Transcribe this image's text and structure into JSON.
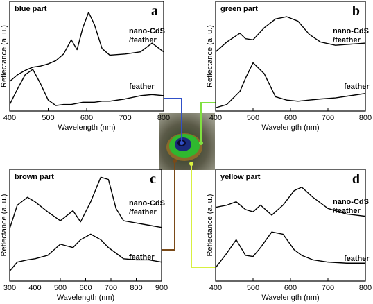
{
  "chart_data": [
    {
      "type": "line",
      "title": "blue part",
      "panel": "a",
      "x_label": "Wavelength (nm)",
      "y_label": "Reflectance (a. u.)",
      "x": [
        400,
        420,
        440,
        460,
        480,
        500,
        520,
        540,
        560,
        575,
        590,
        605,
        620,
        640,
        660,
        700,
        740,
        770,
        800
      ],
      "xlim": [
        400,
        800
      ],
      "xticks": [
        400,
        500,
        600,
        700,
        800
      ],
      "ylim": [
        0,
        1
      ],
      "series": [
        {
          "name": "nano-CdS\n/feather",
          "color": "#000000",
          "values": [
            0.27,
            0.33,
            0.37,
            0.4,
            0.41,
            0.43,
            0.46,
            0.52,
            0.65,
            0.56,
            0.76,
            0.9,
            0.79,
            0.57,
            0.51,
            0.52,
            0.54,
            0.62,
            0.54
          ]
        },
        {
          "name": "feather",
          "color": "#000000",
          "values": [
            0.06,
            0.2,
            0.33,
            0.38,
            0.25,
            0.1,
            0.05,
            0.06,
            0.06,
            0.07,
            0.08,
            0.08,
            0.08,
            0.09,
            0.09,
            0.11,
            0.14,
            0.15,
            0.14
          ]
        }
      ]
    },
    {
      "type": "line",
      "title": "green part",
      "panel": "b",
      "x_label": "Wavelength (nm)",
      "y_label": "Reflectance (a. u.)",
      "x": [
        400,
        430,
        465,
        480,
        500,
        530,
        560,
        590,
        620,
        650,
        680,
        720,
        760,
        800
      ],
      "xlim": [
        400,
        800
      ],
      "xticks": [
        400,
        500,
        600,
        700,
        800
      ],
      "ylim": [
        0,
        1
      ],
      "series": [
        {
          "name": "nano-CdS\n/feather",
          "color": "#000000",
          "values": [
            0.54,
            0.63,
            0.71,
            0.66,
            0.65,
            0.76,
            0.84,
            0.86,
            0.82,
            0.7,
            0.63,
            0.6,
            0.61,
            0.62
          ]
        },
        {
          "name": "feather",
          "color": "#000000",
          "values": [
            0.03,
            0.06,
            0.18,
            0.3,
            0.44,
            0.34,
            0.13,
            0.1,
            0.09,
            0.1,
            0.11,
            0.12,
            0.14,
            0.16
          ]
        }
      ]
    },
    {
      "type": "line",
      "title": "brown part",
      "panel": "c",
      "x_label": "Wavelength (nm)",
      "y_label": "Reflectance (a. u.)",
      "x": [
        300,
        330,
        370,
        400,
        450,
        500,
        550,
        580,
        620,
        660,
        690,
        720,
        750,
        800,
        850,
        900
      ],
      "xlim": [
        300,
        900
      ],
      "xticks": [
        300,
        400,
        500,
        600,
        700,
        800,
        900
      ],
      "ylim": [
        0,
        1
      ],
      "series": [
        {
          "name": "nano-CdS\n/feather",
          "color": "#000000",
          "values": [
            0.47,
            0.68,
            0.75,
            0.71,
            0.62,
            0.54,
            0.63,
            0.53,
            0.71,
            0.93,
            0.91,
            0.65,
            0.54,
            0.52,
            0.5,
            0.48
          ]
        },
        {
          "name": "feather",
          "color": "#000000",
          "values": [
            0.09,
            0.17,
            0.19,
            0.2,
            0.23,
            0.33,
            0.3,
            0.37,
            0.42,
            0.37,
            0.3,
            0.25,
            0.2,
            0.19,
            0.19,
            0.17
          ]
        }
      ]
    },
    {
      "type": "line",
      "title": "yellow part",
      "panel": "d",
      "x_label": "Wavelength (nm)",
      "y_label": "Reflectance (a. u.)",
      "x": [
        400,
        430,
        455,
        480,
        500,
        520,
        550,
        580,
        610,
        630,
        660,
        700,
        750,
        800
      ],
      "xlim": [
        400,
        800
      ],
      "xticks": [
        400,
        500,
        600,
        700,
        800
      ],
      "ylim": [
        0,
        1
      ],
      "series": [
        {
          "name": "nano-CdS\n/feather",
          "color": "#000000",
          "values": [
            0.66,
            0.68,
            0.71,
            0.64,
            0.62,
            0.68,
            0.59,
            0.68,
            0.81,
            0.84,
            0.75,
            0.65,
            0.6,
            0.58
          ]
        },
        {
          "name": "feather",
          "color": "#000000",
          "values": [
            0.12,
            0.25,
            0.37,
            0.23,
            0.22,
            0.3,
            0.44,
            0.42,
            0.28,
            0.23,
            0.19,
            0.17,
            0.16,
            0.16
          ]
        }
      ]
    }
  ]
}
